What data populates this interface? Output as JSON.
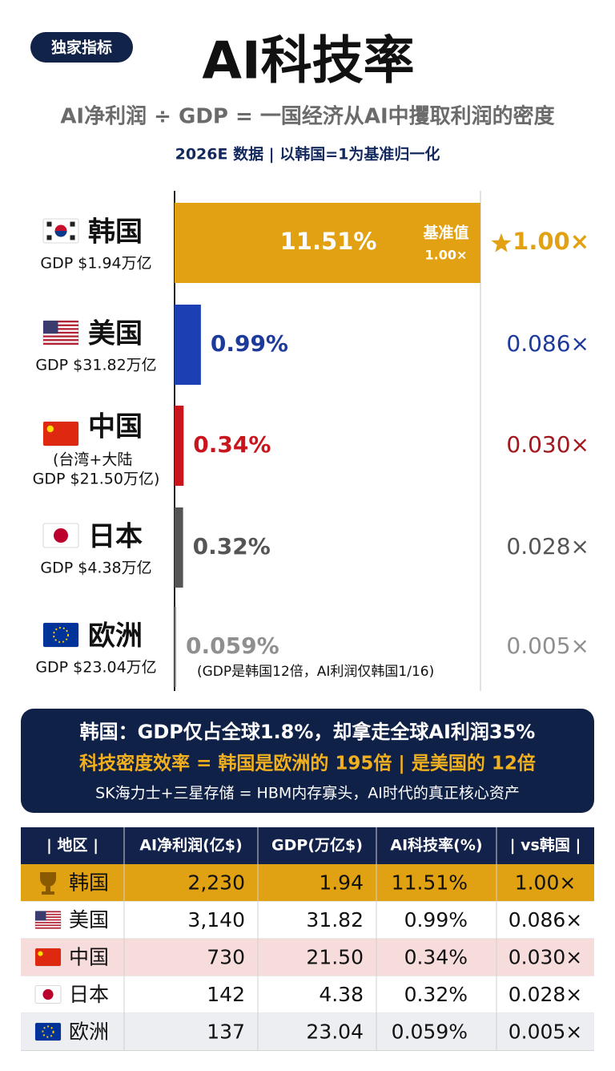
{
  "header": {
    "badge": "独家指标",
    "title": "AI科技率",
    "subtitle": "AI净利润 ÷ GDP = 一国经济从AI中攫取利润的密度",
    "note": "2026E 数据 | 以韩国=1为基准归一化"
  },
  "chart_data": {
    "type": "bar",
    "orientation": "horizontal",
    "categories": [
      "韩国",
      "美国",
      "中国",
      "日本",
      "欧洲"
    ],
    "gdp_labels": [
      "GDP $1.94万亿",
      "GDP $31.82万亿",
      "GDP $21.50万亿)",
      "GDP $4.38万亿",
      "GDP $23.04万亿"
    ],
    "values": [
      11.51,
      0.99,
      0.34,
      0.32,
      0.059
    ],
    "value_labels": [
      "11.51%",
      "0.99%",
      "0.34%",
      "0.32%",
      "0.059%"
    ],
    "ratios": [
      1.0,
      0.086,
      0.03,
      0.028,
      0.005
    ],
    "ratio_labels": [
      "1.00×",
      "0.086×",
      "0.030×",
      "0.028×",
      "0.005×"
    ],
    "colors": [
      "#e1a112",
      "#1d3fb4",
      "#c9161e",
      "#555555",
      "#8f8f8f"
    ],
    "annotations": {
      "china_region": "(台湾+大陆",
      "europe_note": "(GDP是韩国12倍，AI利润仅韩国1/16)",
      "baseline": "基准值"
    }
  },
  "summary": {
    "line1": "韩国：GDP仅占全球1.8%，却拿走全球AI利润35%",
    "line2": "科技密度效率 = 韩国是欧洲的 195倍 | 是美国的 12倍",
    "line3": "SK海力士+三星存储 = HBM内存寡头，AI时代的真正核心资产"
  },
  "table": {
    "columns": [
      "| 地区 |",
      "AI净利润(亿$)",
      "GDP(万亿$)",
      "AI科技率(%)",
      "| vs韩国 |"
    ],
    "rows": [
      [
        "韩国",
        "2,230",
        "1.94",
        "11.51%",
        "1.00×"
      ],
      [
        "美国",
        "3,140",
        "31.82",
        "0.99%",
        "0.086×"
      ],
      [
        "中国",
        "730",
        "21.50",
        "0.34%",
        "0.030×"
      ],
      [
        "日本",
        "142",
        "4.38",
        "0.32%",
        "0.028×"
      ],
      [
        "欧洲",
        "137",
        "23.04",
        "0.059%",
        "0.005×"
      ]
    ]
  }
}
